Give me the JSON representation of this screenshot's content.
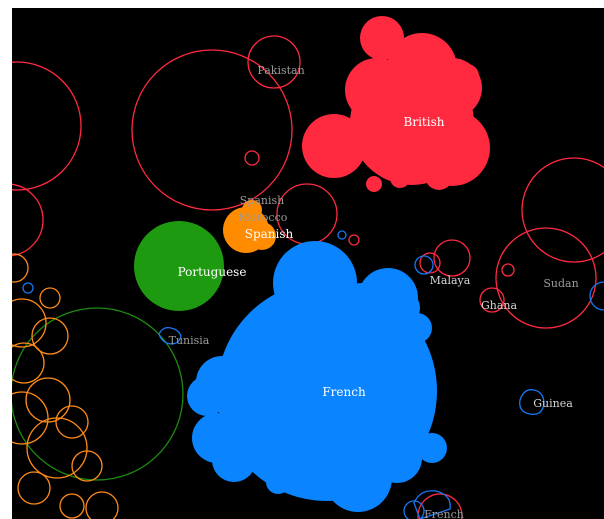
{
  "colors": {
    "background": "#000000",
    "british": "#ff2a40",
    "french": "#0a84ff",
    "portuguese": "#1e9a10",
    "spanish": "#ff8c00",
    "british_outline": "#ff2a40",
    "french_outline": "#1877f2",
    "portuguese_outline": "#1e8a10",
    "spanish_outline": "#ff8c1a"
  },
  "labels": {
    "british": "British",
    "french": "French",
    "portuguese": "Portuguese",
    "spanish_main": "Spanish",
    "spanish_faint": "Spanish",
    "morocco": "Morocco",
    "pakistan": "Pakistan",
    "malaya": "Malaya",
    "ghana": "Ghana",
    "sudan": "Sudan",
    "tunisia": "Tunisia",
    "guinea": "Guinea",
    "french_bottom": "French"
  }
}
